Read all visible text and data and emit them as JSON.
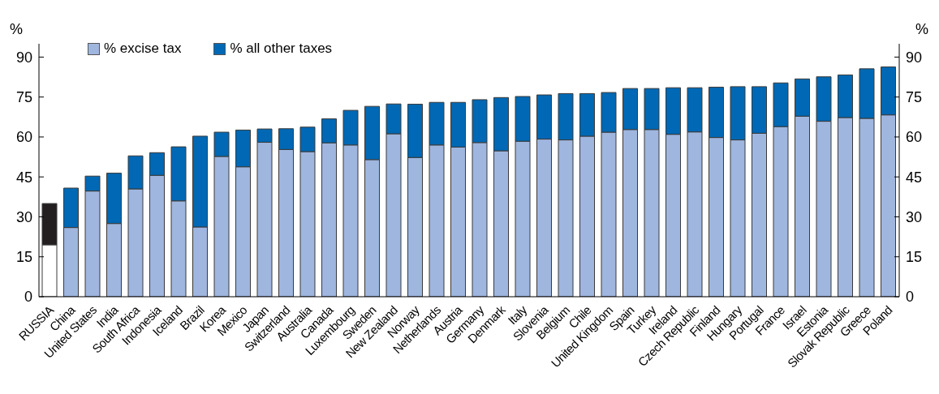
{
  "chart_data": {
    "type": "bar",
    "stacked": true,
    "ylabel": "%",
    "y2label": "%",
    "categories": [
      "RUSSIA",
      "China",
      "United States",
      "India",
      "South Africa",
      "Indonesia",
      "Iceland",
      "Brazil",
      "Korea",
      "Mexico",
      "Japan",
      "Switzerland",
      "Australia",
      "Canada",
      "Luxembourg",
      "Sweden",
      "New Zealand",
      "Norway",
      "Netherlands",
      "Austria",
      "Germany",
      "Denmark",
      "Italy",
      "Slovenia",
      "Belgium",
      "Chile",
      "United Kingdom",
      "Spain",
      "Turkey",
      "Ireland",
      "Czech Republic",
      "Finland",
      "Hungary",
      "Portugal",
      "France",
      "Israel",
      "Estonia",
      "Slovak Republic",
      "Greece",
      "Poland"
    ],
    "series": [
      {
        "name": "% excise tax",
        "color": "#9fb6df",
        "colors": [
          "#ffffff",
          "#9fb6df",
          "#9fb6df",
          "#9fb6df",
          "#9fb6df",
          "#9fb6df",
          "#9fb6df",
          "#9fb6df",
          "#9fb6df",
          "#9fb6df",
          "#9fb6df",
          "#9fb6df",
          "#9fb6df",
          "#9fb6df",
          "#9fb6df",
          "#9fb6df",
          "#9fb6df",
          "#9fb6df",
          "#9fb6df",
          "#9fb6df",
          "#9fb6df",
          "#9fb6df",
          "#9fb6df",
          "#9fb6df",
          "#9fb6df",
          "#9fb6df",
          "#9fb6df",
          "#9fb6df",
          "#9fb6df",
          "#9fb6df",
          "#9fb6df",
          "#9fb6df",
          "#9fb6df",
          "#9fb6df",
          "#9fb6df",
          "#9fb6df",
          "#9fb6df",
          "#9fb6df",
          "#9fb6df",
          "#9fb6df"
        ],
        "values": [
          19.5,
          26,
          39.7,
          27.5,
          40.5,
          45.6,
          36,
          26.2,
          52.7,
          48.8,
          58,
          55.3,
          54.5,
          57.8,
          57,
          51.5,
          61.2,
          52.3,
          57,
          56.2,
          57.9,
          54.8,
          58.4,
          59.2,
          58.9,
          60.3,
          61.8,
          62.8,
          62.8,
          61,
          61.9,
          59.8,
          58.9,
          61.4,
          63.9,
          67.8,
          65.9,
          67.3,
          67,
          68.3
        ]
      },
      {
        "name": "% all other taxes",
        "color": "#0068b4",
        "colors": [
          "#231f20",
          "#0068b4",
          "#0068b4",
          "#0068b4",
          "#0068b4",
          "#0068b4",
          "#0068b4",
          "#0068b4",
          "#0068b4",
          "#0068b4",
          "#0068b4",
          "#0068b4",
          "#0068b4",
          "#0068b4",
          "#0068b4",
          "#0068b4",
          "#0068b4",
          "#0068b4",
          "#0068b4",
          "#0068b4",
          "#0068b4",
          "#0068b4",
          "#0068b4",
          "#0068b4",
          "#0068b4",
          "#0068b4",
          "#0068b4",
          "#0068b4",
          "#0068b4",
          "#0068b4",
          "#0068b4",
          "#0068b4",
          "#0068b4",
          "#0068b4",
          "#0068b4",
          "#0068b4",
          "#0068b4",
          "#0068b4",
          "#0068b4",
          "#0068b4"
        ],
        "values": [
          15.5,
          14.8,
          5.6,
          18.9,
          12.4,
          8.5,
          20.3,
          34.1,
          9.1,
          13.8,
          5,
          7.8,
          9.2,
          9,
          13,
          20,
          11.2,
          20,
          16,
          16.8,
          16.1,
          20,
          16.8,
          16.6,
          17.4,
          16,
          14.9,
          15.4,
          15.4,
          17.5,
          16.6,
          18.9,
          20,
          17.5,
          16.4,
          14,
          16.7,
          16,
          18.6,
          18
        ]
      }
    ],
    "ylim": [
      0,
      95
    ],
    "yticks": [
      0,
      15,
      30,
      45,
      60,
      75,
      90
    ],
    "y2lim": [
      0,
      95
    ],
    "y2ticks": [
      0,
      15,
      30,
      45,
      60,
      75,
      90
    ],
    "legend": "top left",
    "grid": false
  }
}
